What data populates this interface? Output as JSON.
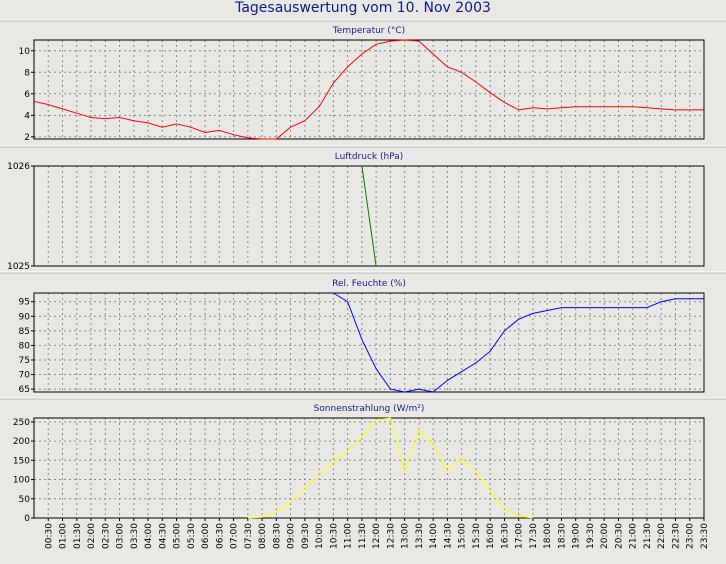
{
  "title": "Tagesauswertung vom 10. Nov 2003",
  "colors": {
    "temperature": "#ff0000",
    "pressure": "#008000",
    "humidity": "#0000ff",
    "solar": "#ffff00",
    "title": "#0a1a8a",
    "subtitle": "#1a1a8a"
  },
  "chart_data": [
    {
      "type": "line",
      "title": "Temperatur (°C)",
      "ylim": [
        1.8,
        11
      ],
      "yticks": [
        2,
        4,
        6,
        8,
        10
      ],
      "grid": true,
      "series": [
        {
          "x": [
            "00:00",
            "00:30",
            "01:00",
            "01:30",
            "02:00",
            "02:30",
            "03:00",
            "03:30",
            "04:00",
            "04:30",
            "05:00",
            "05:30",
            "06:00",
            "06:30",
            "07:00",
            "07:30",
            "08:00",
            "08:30",
            "09:00",
            "09:30",
            "10:00",
            "10:30",
            "11:00",
            "11:30",
            "12:00",
            "12:30",
            "13:00",
            "13:30",
            "14:00",
            "14:30",
            "15:00",
            "15:30",
            "16:00",
            "16:30",
            "17:00",
            "17:30",
            "18:00",
            "18:30",
            "19:00",
            "19:30",
            "20:00",
            "20:30",
            "21:00",
            "21:30",
            "22:00",
            "22:30",
            "23:00",
            "23:30"
          ],
          "values": [
            5.3,
            5.0,
            4.6,
            4.2,
            3.8,
            3.7,
            3.8,
            3.5,
            3.3,
            2.9,
            3.2,
            2.9,
            2.4,
            2.6,
            2.2,
            1.9,
            1.8,
            1.8,
            2.9,
            3.5,
            4.8,
            7.0,
            8.5,
            9.7,
            10.6,
            10.9,
            11.0,
            10.9,
            9.7,
            8.5,
            8.0,
            7.1,
            6.1,
            5.2,
            4.5,
            4.7,
            4.6,
            4.7,
            4.8,
            4.8,
            4.8,
            4.8,
            4.8,
            4.7,
            4.6,
            4.5,
            4.5,
            4.5
          ]
        }
      ]
    },
    {
      "type": "line",
      "title": "Luftdruck (hPa)",
      "ylim": [
        1025,
        1026
      ],
      "yticks": [
        1025,
        1026
      ],
      "grid": true,
      "series": [
        {
          "x": [
            "11:30",
            "12:00"
          ],
          "values": [
            1026,
            1025
          ]
        }
      ]
    },
    {
      "type": "line",
      "title": "Rel. Feuchte (%)",
      "ylim": [
        64,
        98
      ],
      "yticks": [
        65,
        70,
        75,
        80,
        85,
        90,
        95
      ],
      "grid": true,
      "series": [
        {
          "x": [
            "10:30",
            "11:00",
            "11:30",
            "12:00",
            "12:30",
            "13:00",
            "13:30",
            "14:00",
            "14:30",
            "15:00",
            "15:30",
            "16:00",
            "16:30",
            "17:00",
            "17:30",
            "18:00",
            "18:30",
            "19:00",
            "19:30",
            "20:00",
            "20:30",
            "21:00",
            "21:30",
            "22:00",
            "22:30",
            "23:00",
            "23:30"
          ],
          "values": [
            98,
            95,
            82,
            72,
            65,
            64,
            65,
            64,
            68,
            71,
            74,
            78,
            85,
            89,
            91,
            92,
            93,
            93,
            93,
            93,
            93,
            93,
            93,
            95,
            96,
            96,
            96
          ]
        }
      ]
    },
    {
      "type": "line",
      "title": "Sonnenstrahlung (W/m²)",
      "ylim": [
        0,
        260
      ],
      "yticks": [
        0,
        50,
        100,
        150,
        200,
        250
      ],
      "grid": true,
      "series": [
        {
          "x": [
            "07:30",
            "08:00",
            "08:30",
            "09:00",
            "09:30",
            "10:00",
            "10:30",
            "11:00",
            "11:30",
            "12:00",
            "12:30",
            "13:00",
            "13:30",
            "14:00",
            "14:30",
            "15:00",
            "15:30",
            "16:00",
            "16:30",
            "17:00",
            "17:30"
          ],
          "values": [
            0,
            2,
            15,
            40,
            75,
            110,
            145,
            175,
            210,
            255,
            260,
            120,
            230,
            190,
            120,
            155,
            120,
            70,
            25,
            5,
            0
          ]
        }
      ]
    }
  ],
  "x_tick_labels": [
    "00:30",
    "01:00",
    "01:30",
    "02:00",
    "02:30",
    "03:00",
    "03:30",
    "04:00",
    "04:30",
    "05:00",
    "05:30",
    "06:00",
    "06:30",
    "07:00",
    "07:30",
    "08:00",
    "08:30",
    "09:00",
    "09:30",
    "10:00",
    "10:30",
    "11:00",
    "11:30",
    "12:00",
    "12:30",
    "13:00",
    "13:30",
    "14:00",
    "14:30",
    "15:00",
    "15:30",
    "16:00",
    "16:30",
    "17:00",
    "17:30",
    "18:00",
    "18:30",
    "19:00",
    "19:30",
    "20:00",
    "20:30",
    "21:00",
    "21:30",
    "22:00",
    "22:30",
    "23:00",
    "23:30"
  ]
}
